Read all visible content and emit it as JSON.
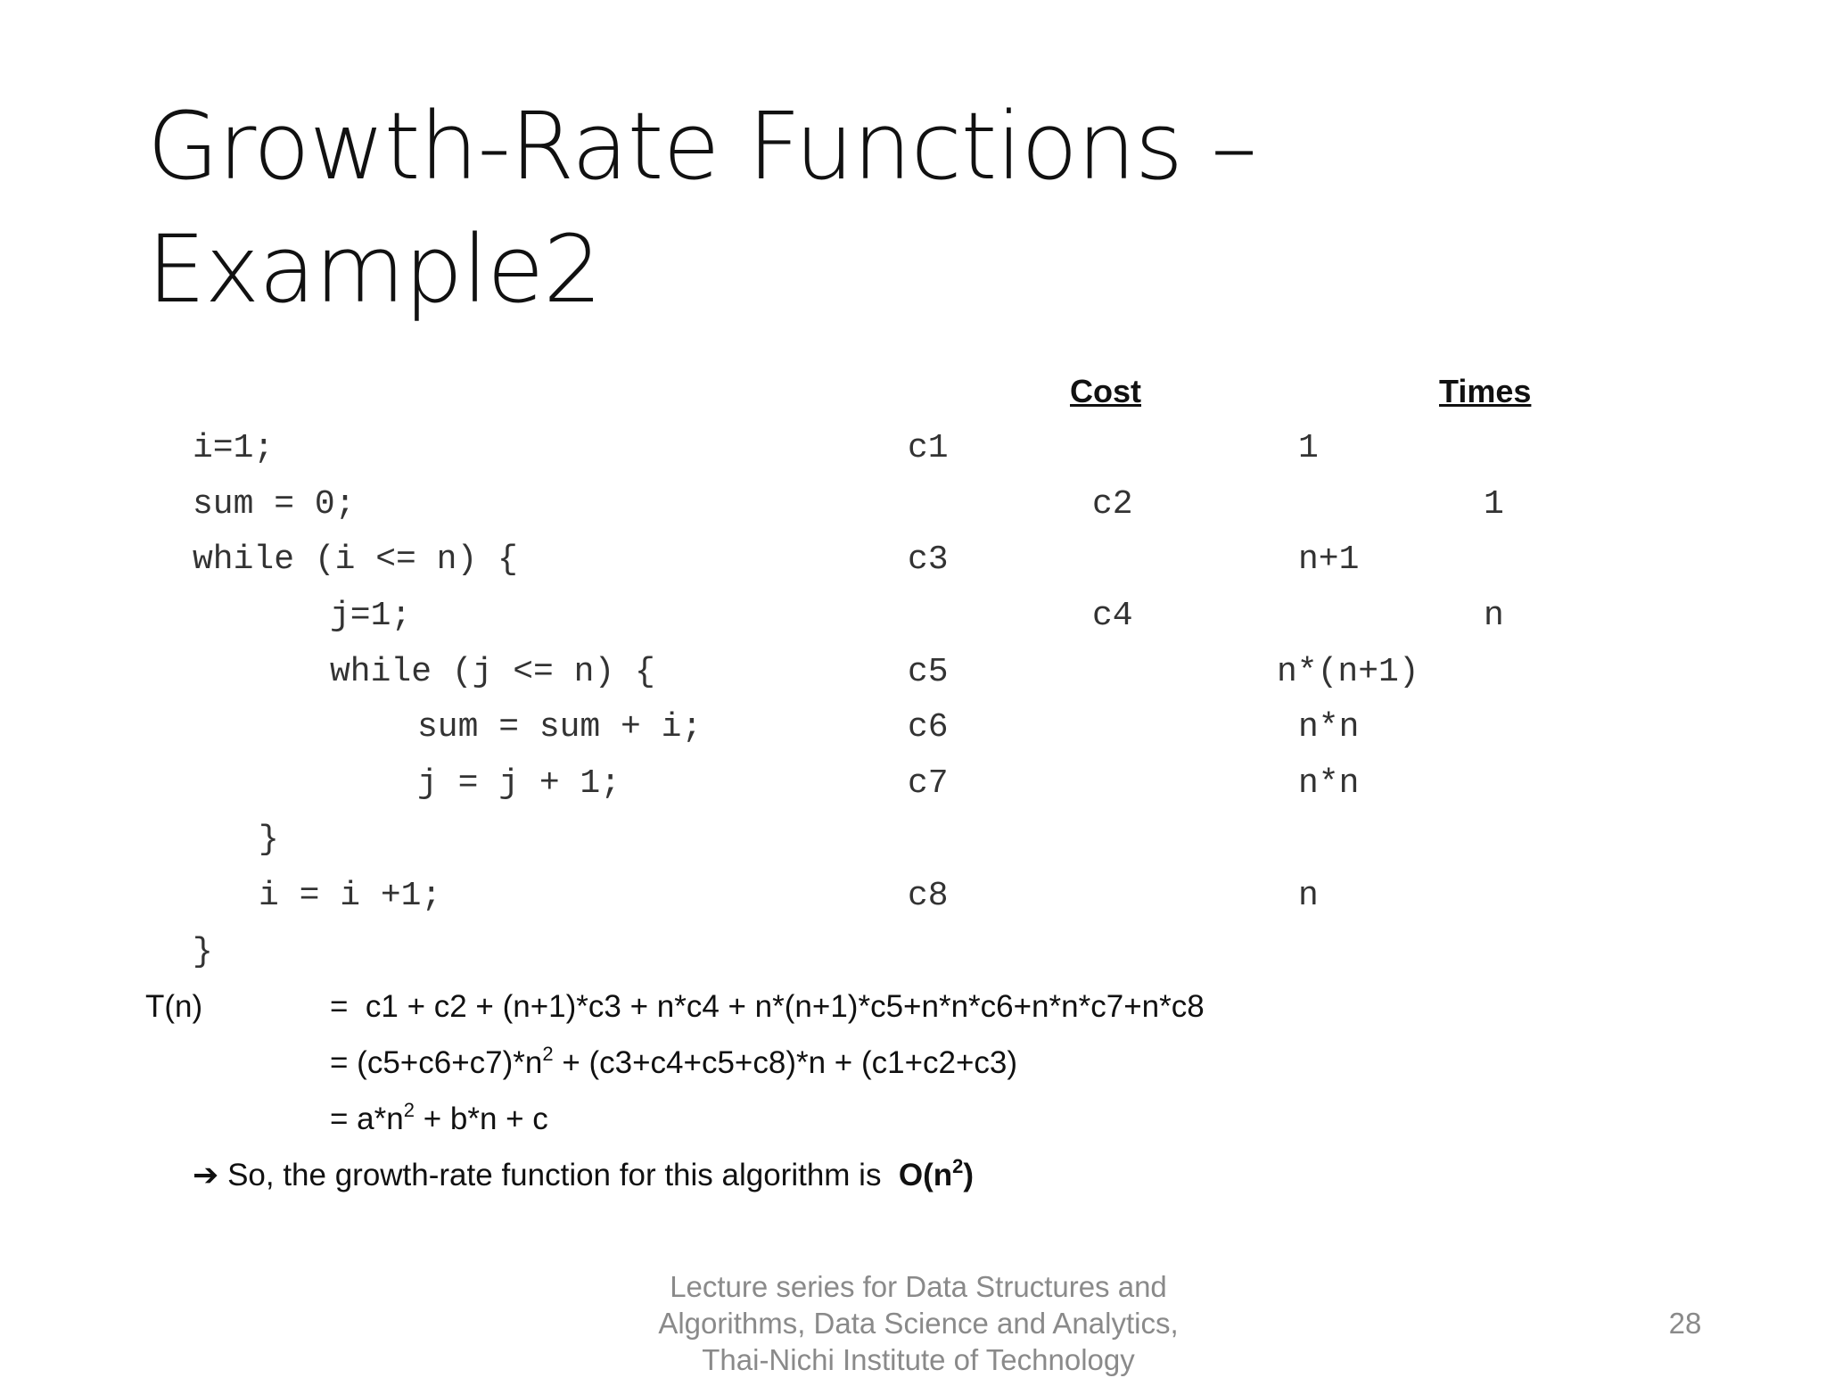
{
  "slide": {
    "title_line1": "Growth-Rate Functions –",
    "title_line2": "Example2",
    "headers": {
      "cost": "Cost",
      "times": "Times"
    },
    "code_rows": [
      {
        "code": "i=1;",
        "cost": "c1",
        "times": "1"
      },
      {
        "code": "sum = 0;",
        "cost": "c2",
        "times": "1"
      },
      {
        "code": "while (i <= n) {",
        "cost": "c3",
        "times": "n+1"
      },
      {
        "code": "j=1;",
        "cost": "c4",
        "times": "n"
      },
      {
        "code": "while (j <= n) {",
        "cost": "c5",
        "times": "n*(n+1)"
      },
      {
        "code": "sum = sum + i;",
        "cost": "c6",
        "times": "n*n"
      },
      {
        "code": "j = j + 1;",
        "cost": "c7",
        "times": "n*n"
      },
      {
        "code": "}",
        "cost": "",
        "times": ""
      },
      {
        "code": "i = i +1;",
        "cost": "c8",
        "times": "n"
      },
      {
        "code": "}",
        "cost": "",
        "times": ""
      }
    ],
    "derivation": {
      "lhs": "T(n)",
      "line1": "=  c1 + c2 + (n+1)*c3 + n*c4 + n*(n+1)*c5+n*n*c6+n*n*c7+n*c8",
      "line2_a": "= (c5+c6+c7)*n",
      "line2_sup": "2",
      "line2_b": " + (c3+c4+c5+c8)*n + (c1+c2+c3)",
      "line3_a": "= a*n",
      "line3_sup": "2",
      "line3_b": " + b*n + c"
    },
    "conclusion": {
      "arrow": "➔",
      "text": "So, the growth-rate function for this algorithm is  ",
      "big_o_a": "O(n",
      "big_o_sup": "2",
      "big_o_b": ")"
    },
    "footer": {
      "line1": "Lecture series for Data Structures and",
      "line2": "Algorithms, Data Science and Analytics,",
      "line3": "Thai-Nichi Institute of Technology",
      "page_number": "28"
    }
  }
}
